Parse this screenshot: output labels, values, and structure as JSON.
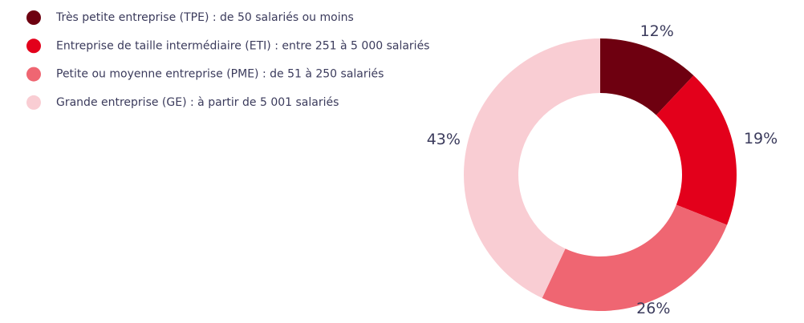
{
  "chart_data": {
    "type": "donut",
    "categories": [
      "Très petite entreprise (TPE) : de 50 salariés ou moins",
      "Entreprise de taille intermédiaire (ETI) : entre 251 à 5 000 salariés",
      "Petite ou moyenne entreprise (PME) : de 51 à 250 salariés",
      "Grande entreprise (GE) : à partir de 5 001 salariés"
    ],
    "values": [
      12,
      19,
      26,
      43
    ],
    "value_labels": [
      "12%",
      "19%",
      "26%",
      "43%"
    ],
    "colors": [
      "#6e0010",
      "#e3001b",
      "#ef6672",
      "#f9cdd3"
    ],
    "legend": "top-left"
  }
}
